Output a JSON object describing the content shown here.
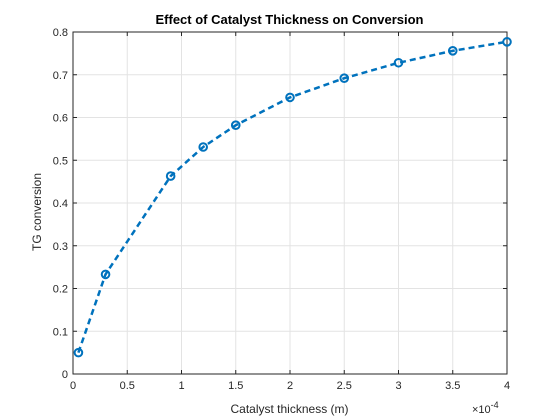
{
  "chart_data": {
    "type": "line",
    "title": "Effect of Catalyst Thickness on Conversion",
    "xlabel": "Catalyst thickness (m)",
    "ylabel": "TG conversion",
    "x_exponent_base": "×10",
    "x_exponent_power": "-4",
    "xlim": [
      0,
      4
    ],
    "ylim": [
      0,
      0.8
    ],
    "xticks": [
      0,
      0.5,
      1,
      1.5,
      2,
      2.5,
      3,
      3.5,
      4
    ],
    "xtick_labels": [
      "0",
      "0.5",
      "1",
      "1.5",
      "2",
      "2.5",
      "3",
      "3.5",
      "4"
    ],
    "yticks": [
      0,
      0.1,
      0.2,
      0.3,
      0.4,
      0.5,
      0.6,
      0.7,
      0.8
    ],
    "ytick_labels": [
      "0",
      "0.1",
      "0.2",
      "0.3",
      "0.4",
      "0.5",
      "0.6",
      "0.7",
      "0.8"
    ],
    "grid": true,
    "line_style": "dashed",
    "marker": "circle",
    "color": "#0072bd",
    "series": [
      {
        "x": [
          0.05,
          0.3,
          0.9,
          1.2,
          1.5,
          2.0,
          2.5,
          3.0,
          3.5,
          4.0
        ],
        "y": [
          0.05,
          0.233,
          0.463,
          0.531,
          0.582,
          0.647,
          0.692,
          0.728,
          0.756,
          0.777
        ]
      }
    ]
  }
}
